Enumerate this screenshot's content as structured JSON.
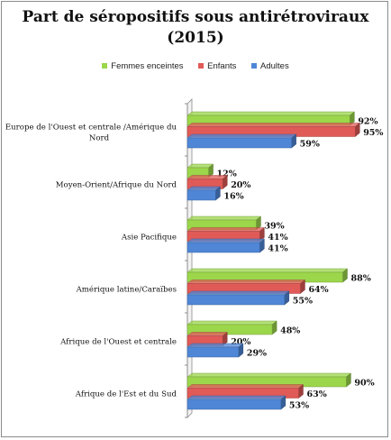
{
  "chart_data": {
    "type": "bar",
    "orientation": "horizontal",
    "title": "Part de séropositifs sous antirétroviraux (2015)",
    "title_lines": [
      "Part de séropositifs sous antirétroviraux",
      "(2015)"
    ],
    "categories": [
      "Europe de l'Ouest et centrale /Amérique du Nord",
      "Moyen-Orient/Afrique du Nord",
      "Asie Pacifique",
      "Amérique latine/Caraïbes",
      "Afrique de l'Ouest et centrale",
      "Afrique de l'Est et du Sud"
    ],
    "category_lines": [
      [
        "Europe de l'Ouest et centrale /Amérique du",
        "Nord"
      ],
      [
        "Moyen-Orient/Afrique du Nord"
      ],
      [
        "Asie Pacifique"
      ],
      [
        "Amérique latine/Caraïbes"
      ],
      [
        "Afrique de l'Ouest et centrale"
      ],
      [
        "Afrique de l'Est et du Sud"
      ]
    ],
    "series": [
      {
        "name": "Femmes enceintes",
        "color": "#9bd64b",
        "values": [
          92,
          12,
          39,
          88,
          48,
          90
        ],
        "labels": [
          "92%",
          "12%",
          "39%",
          "88%",
          "48%",
          "90%"
        ]
      },
      {
        "name": "Enfants",
        "color": "#e05a57",
        "values": [
          95,
          20,
          41,
          64,
          20,
          63
        ],
        "labels": [
          "95%",
          "20%",
          "41%",
          "64%",
          "20%",
          "63%"
        ]
      },
      {
        "name": "Adultes",
        "color": "#4f86d6",
        "values": [
          59,
          16,
          41,
          55,
          29,
          53
        ],
        "labels": [
          "59%",
          "16%",
          "41%",
          "55%",
          "29%",
          "53%"
        ]
      }
    ],
    "xlim": [
      0,
      100
    ],
    "grid": false,
    "legend_position": "top"
  }
}
